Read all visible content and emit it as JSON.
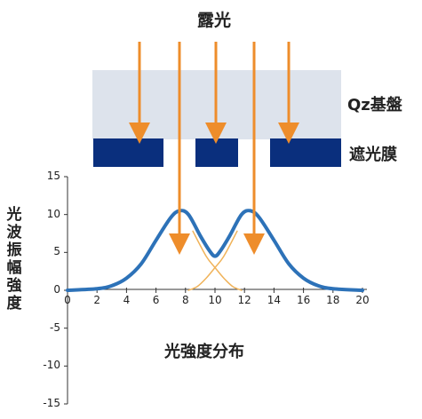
{
  "labels": {
    "exposure": "露光",
    "qz_substrate": "Qz基盤",
    "light_shield_film": "遮光膜",
    "light_intensity_distribution": "光強度分布",
    "y_axis": "光波振幅強度"
  },
  "colors": {
    "substrate": "#dde3ec",
    "mask": "#0a2f7d",
    "arrow": "#ee8d2b",
    "curve": "#2d72b8",
    "component_curve": "#f0b35a",
    "axis": "#333333"
  },
  "chart_data": {
    "type": "line",
    "xlim": [
      0,
      20
    ],
    "ylim": [
      -15,
      15
    ],
    "x_ticks": [
      "0",
      "2",
      "4",
      "6",
      "8",
      "10",
      "12",
      "14",
      "16",
      "18",
      "20"
    ],
    "y_ticks": [
      "15",
      "10",
      "5",
      "0",
      "-5",
      "-10",
      "-15"
    ],
    "x_tick_values": [
      0,
      2,
      4,
      6,
      8,
      10,
      12,
      14,
      16,
      18,
      20
    ],
    "y_tick_values": [
      15,
      10,
      5,
      0,
      -5,
      -10,
      -15
    ],
    "series": [
      {
        "role": "total",
        "points": [
          [
            0,
            0
          ],
          [
            2,
            0.2
          ],
          [
            3,
            0.6
          ],
          [
            4,
            1.6
          ],
          [
            5,
            3.5
          ],
          [
            6,
            6.6
          ],
          [
            7,
            9.6
          ],
          [
            7.6,
            10.5
          ],
          [
            8.2,
            10
          ],
          [
            9,
            7.2
          ],
          [
            9.6,
            5.3
          ],
          [
            10,
            4.5
          ],
          [
            10.4,
            5.3
          ],
          [
            11,
            7.2
          ],
          [
            11.8,
            10
          ],
          [
            12.4,
            10.5
          ],
          [
            13,
            9.6
          ],
          [
            14,
            6.6
          ],
          [
            15,
            3.5
          ],
          [
            16,
            1.6
          ],
          [
            17,
            0.6
          ],
          [
            18,
            0.2
          ],
          [
            20,
            0
          ]
        ]
      },
      {
        "role": "component",
        "points": [
          [
            8.5,
            7.8
          ],
          [
            9.4,
            4.5
          ],
          [
            10,
            3
          ],
          [
            10.6,
            1.6
          ],
          [
            11.2,
            0.5
          ],
          [
            11.8,
            0
          ]
        ]
      },
      {
        "role": "component",
        "points": [
          [
            11.5,
            7.8
          ],
          [
            10.6,
            4.5
          ],
          [
            10,
            3
          ],
          [
            9.4,
            1.6
          ],
          [
            8.8,
            0.5
          ],
          [
            8.2,
            0
          ]
        ]
      }
    ]
  }
}
